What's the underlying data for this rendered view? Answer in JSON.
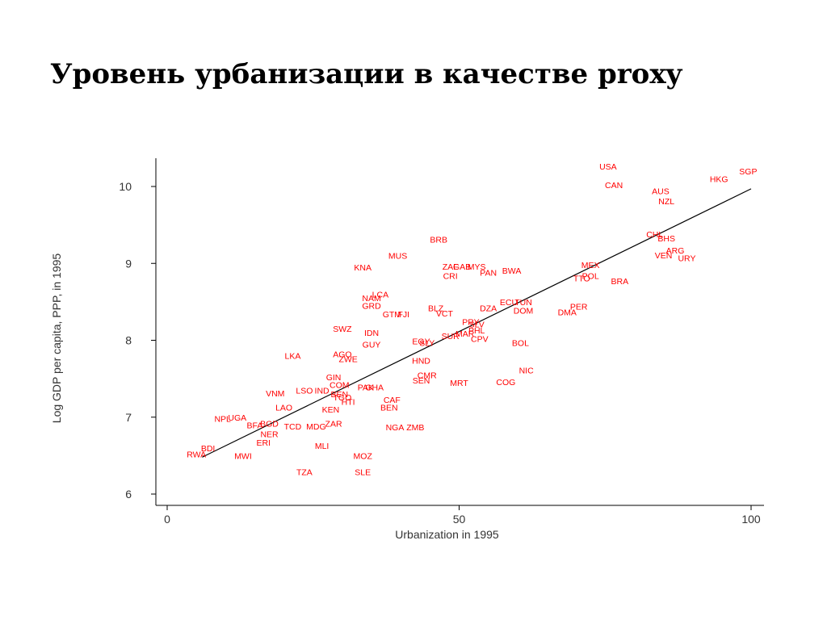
{
  "slide": {
    "title": "Уровень урбанизации в качестве proxy"
  },
  "colors": {
    "points": "#ff0000",
    "fit_line": "#000000",
    "axis": "#000000",
    "text": "#333333"
  },
  "chart_data": {
    "type": "scatter",
    "xlabel": "Urbanization in 1995",
    "ylabel": "Log GDP per capita, PPP, in 1995",
    "xlim": [
      -5,
      103
    ],
    "ylim": [
      5.85,
      10.45
    ],
    "x_ticks": [
      {
        "value": 0,
        "label": "0"
      },
      {
        "value": 50,
        "label": "50"
      },
      {
        "value": 100,
        "label": "100"
      }
    ],
    "y_ticks": [
      {
        "value": 6,
        "label": "6"
      },
      {
        "value": 7,
        "label": "7"
      },
      {
        "value": 8,
        "label": "8"
      },
      {
        "value": 9,
        "label": "9"
      },
      {
        "value": 10,
        "label": "10"
      }
    ],
    "grid": false,
    "fit_line": {
      "x": [
        6,
        100
      ],
      "y": [
        6.48,
        9.97
      ]
    },
    "points": [
      {
        "label": "USA",
        "x": 75.5,
        "y": 10.26
      },
      {
        "label": "SGP",
        "x": 99.5,
        "y": 10.2
      },
      {
        "label": "HKG",
        "x": 94.5,
        "y": 10.1
      },
      {
        "label": "CAN",
        "x": 76.5,
        "y": 10.02
      },
      {
        "label": "AUS",
        "x": 84.5,
        "y": 9.94
      },
      {
        "label": "NZL",
        "x": 85.5,
        "y": 9.81
      },
      {
        "label": "CHL",
        "x": 83.5,
        "y": 9.38
      },
      {
        "label": "BHS",
        "x": 85.5,
        "y": 9.33
      },
      {
        "label": "BRB",
        "x": 46.5,
        "y": 9.31
      },
      {
        "label": "ARG",
        "x": 87,
        "y": 9.17
      },
      {
        "label": "VEN",
        "x": 85,
        "y": 9.11
      },
      {
        "label": "URY",
        "x": 89,
        "y": 9.07
      },
      {
        "label": "MUS",
        "x": 39.5,
        "y": 9.1
      },
      {
        "label": "MEX",
        "x": 72.5,
        "y": 8.98
      },
      {
        "label": "KNA",
        "x": 33.5,
        "y": 8.95
      },
      {
        "label": "ZAF",
        "x": 48.5,
        "y": 8.96
      },
      {
        "label": "GAB",
        "x": 50.5,
        "y": 8.96
      },
      {
        "label": "MYS",
        "x": 53,
        "y": 8.96
      },
      {
        "label": "BWA",
        "x": 59,
        "y": 8.91
      },
      {
        "label": "PAN",
        "x": 55,
        "y": 8.88
      },
      {
        "label": "CRI",
        "x": 48.5,
        "y": 8.84
      },
      {
        "label": "POL",
        "x": 72.5,
        "y": 8.84
      },
      {
        "label": "TTO",
        "x": 71,
        "y": 8.81
      },
      {
        "label": "BRA",
        "x": 77.5,
        "y": 8.77
      },
      {
        "label": "LCA",
        "x": 36.5,
        "y": 8.6
      },
      {
        "label": "NAM",
        "x": 35,
        "y": 8.55
      },
      {
        "label": "ECU",
        "x": 58.5,
        "y": 8.5
      },
      {
        "label": "TUN",
        "x": 61,
        "y": 8.5
      },
      {
        "label": "GRD",
        "x": 35,
        "y": 8.45
      },
      {
        "label": "PER",
        "x": 70.5,
        "y": 8.44
      },
      {
        "label": "DZA",
        "x": 55,
        "y": 8.42
      },
      {
        "label": "BLZ",
        "x": 46,
        "y": 8.42
      },
      {
        "label": "DOM",
        "x": 61,
        "y": 8.39
      },
      {
        "label": "DMA",
        "x": 68.5,
        "y": 8.37
      },
      {
        "label": "VCT",
        "x": 47.5,
        "y": 8.35
      },
      {
        "label": "GTM",
        "x": 38.5,
        "y": 8.34
      },
      {
        "label": "FJI",
        "x": 40.5,
        "y": 8.34
      },
      {
        "label": "PRY",
        "x": 52,
        "y": 8.24
      },
      {
        "label": "SLV",
        "x": 53,
        "y": 8.21
      },
      {
        "label": "SWZ",
        "x": 30,
        "y": 8.15
      },
      {
        "label": "IDN",
        "x": 35,
        "y": 8.1
      },
      {
        "label": "PHL",
        "x": 53,
        "y": 8.13
      },
      {
        "label": "MAR",
        "x": 51,
        "y": 8.09
      },
      {
        "label": "SUR",
        "x": 48.5,
        "y": 8.06
      },
      {
        "label": "CPV",
        "x": 53.5,
        "y": 8.02
      },
      {
        "label": "EGY",
        "x": 43.5,
        "y": 7.99
      },
      {
        "label": "SLY",
        "x": 44.5,
        "y": 7.97
      },
      {
        "label": "BOL",
        "x": 60.5,
        "y": 7.97
      },
      {
        "label": "GUY",
        "x": 35,
        "y": 7.95
      },
      {
        "label": "AGO",
        "x": 30,
        "y": 7.82
      },
      {
        "label": "LKA",
        "x": 21.5,
        "y": 7.8
      },
      {
        "label": "ZWE",
        "x": 31,
        "y": 7.76
      },
      {
        "label": "HND",
        "x": 43.5,
        "y": 7.74
      },
      {
        "label": "NIC",
        "x": 61.5,
        "y": 7.61
      },
      {
        "label": "GIN",
        "x": 28.5,
        "y": 7.52
      },
      {
        "label": "CMR",
        "x": 44.5,
        "y": 7.55
      },
      {
        "label": "SEN",
        "x": 43.5,
        "y": 7.48
      },
      {
        "label": "MRT",
        "x": 50,
        "y": 7.45
      },
      {
        "label": "COG",
        "x": 58,
        "y": 7.46
      },
      {
        "label": "COM",
        "x": 29.5,
        "y": 7.42
      },
      {
        "label": "GHA",
        "x": 35.5,
        "y": 7.39
      },
      {
        "label": "PAK",
        "x": 34,
        "y": 7.39
      },
      {
        "label": "VNM",
        "x": 18.5,
        "y": 7.31
      },
      {
        "label": "LSO",
        "x": 23.5,
        "y": 7.35
      },
      {
        "label": "IND",
        "x": 26.5,
        "y": 7.35
      },
      {
        "label": "BEN",
        "x": 29.5,
        "y": 7.3
      },
      {
        "label": "TGO",
        "x": 30,
        "y": 7.26
      },
      {
        "label": "CAF",
        "x": 38.5,
        "y": 7.23
      },
      {
        "label": "HTI",
        "x": 31,
        "y": 7.2
      },
      {
        "label": "BEN",
        "x": 38,
        "y": 7.13
      },
      {
        "label": "LAO",
        "x": 20,
        "y": 7.13
      },
      {
        "label": "KEN",
        "x": 28,
        "y": 7.1
      },
      {
        "label": "NPL",
        "x": 9.5,
        "y": 6.98
      },
      {
        "label": "UGA",
        "x": 12,
        "y": 7.0
      },
      {
        "label": "BFA",
        "x": 15,
        "y": 6.9
      },
      {
        "label": "BGD",
        "x": 17.5,
        "y": 6.92
      },
      {
        "label": "ZAR",
        "x": 28.5,
        "y": 6.92
      },
      {
        "label": "TCD",
        "x": 21.5,
        "y": 6.88
      },
      {
        "label": "MDG",
        "x": 25.5,
        "y": 6.88
      },
      {
        "label": "NGA",
        "x": 39,
        "y": 6.87
      },
      {
        "label": "ZMB",
        "x": 42.5,
        "y": 6.87
      },
      {
        "label": "NER",
        "x": 17.5,
        "y": 6.78
      },
      {
        "label": "ERI",
        "x": 16.5,
        "y": 6.67
      },
      {
        "label": "BDI",
        "x": 7,
        "y": 6.6
      },
      {
        "label": "MLI",
        "x": 26.5,
        "y": 6.63
      },
      {
        "label": "RWA",
        "x": 5,
        "y": 6.52
      },
      {
        "label": "MWI",
        "x": 13,
        "y": 6.5
      },
      {
        "label": "MOZ",
        "x": 33.5,
        "y": 6.5
      },
      {
        "label": "TZA",
        "x": 23.5,
        "y": 6.29
      },
      {
        "label": "SLE",
        "x": 33.5,
        "y": 6.29
      }
    ]
  }
}
